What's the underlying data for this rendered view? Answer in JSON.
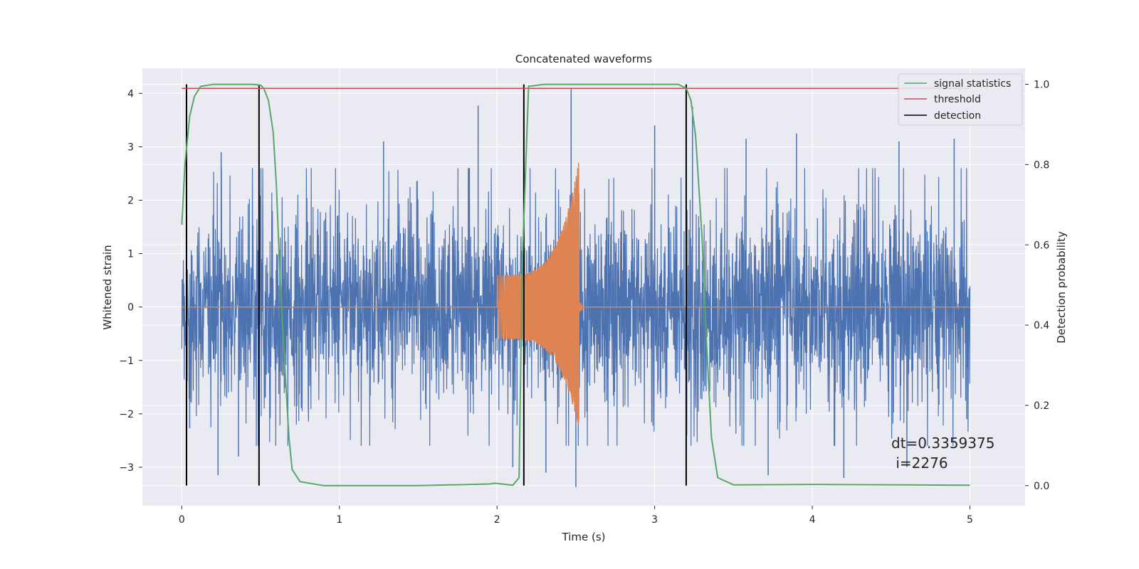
{
  "chart_data": {
    "type": "line",
    "title": "Concatenated waveforms",
    "xlabel": "Time (s)",
    "ylabel": "Whitened strain",
    "ylabel_right": "Detection probability",
    "xlim": [
      -0.25,
      5.35
    ],
    "ylim": [
      -3.72,
      4.47
    ],
    "ylim_right": [
      -0.05,
      1.04
    ],
    "x_ticks": [
      0,
      1,
      2,
      3,
      4,
      5
    ],
    "y_ticks": [
      -3,
      -2,
      -1,
      0,
      1,
      2,
      3,
      4
    ],
    "y_ticks_right": [
      0.0,
      0.2,
      0.4,
      0.6,
      0.8,
      1.0
    ],
    "grid": true,
    "legend_position": "top-right",
    "series": [
      {
        "name": "",
        "axis": "left",
        "description_kind": "noise",
        "x_range": [
          0,
          5
        ],
        "amplitude_typical": 1.0,
        "spikes": [
          {
            "x": 0.03,
            "y": 3.45
          },
          {
            "x": 0.05,
            "y": -2.27
          },
          {
            "x": 0.25,
            "y": 2.9
          },
          {
            "x": 0.23,
            "y": -3.15
          },
          {
            "x": 0.36,
            "y": -2.8
          },
          {
            "x": 1.28,
            "y": 3.1
          },
          {
            "x": 1.88,
            "y": 3.77
          },
          {
            "x": 2.1,
            "y": -3.0
          },
          {
            "x": 2.31,
            "y": -3.1
          },
          {
            "x": 2.47,
            "y": 4.1
          },
          {
            "x": 2.5,
            "y": -3.37
          },
          {
            "x": 3.0,
            "y": 3.4
          },
          {
            "x": 3.24,
            "y": 3.75
          },
          {
            "x": 3.58,
            "y": 3.15
          },
          {
            "x": 3.72,
            "y": -3.15
          },
          {
            "x": 3.9,
            "y": 3.25
          },
          {
            "x": 4.2,
            "y": -3.2
          },
          {
            "x": 4.55,
            "y": 3.1
          },
          {
            "x": 4.6,
            "y": -3.0
          },
          {
            "x": 4.9,
            "y": 3.15
          },
          {
            "x": 4.98,
            "y": -2.1
          }
        ]
      },
      {
        "name": "",
        "axis": "left",
        "description_kind": "chirp",
        "start": 2.0,
        "peak": 2.52,
        "end": 2.55,
        "amplitude_start": 0.6,
        "amplitude_peak": 2.75,
        "amplitude_peak_negative": -2.3
      },
      {
        "name": "signal statistics",
        "axis": "right",
        "x": [
          0.0,
          0.02,
          0.05,
          0.08,
          0.12,
          0.2,
          0.45,
          0.5,
          0.52,
          0.55,
          0.58,
          0.6,
          0.62,
          0.65,
          0.68,
          0.7,
          0.75,
          0.9,
          1.5,
          1.95,
          1.99,
          2.03,
          2.1,
          2.14,
          2.16,
          2.2,
          2.3,
          3.0,
          3.15,
          3.2,
          3.23,
          3.26,
          3.3,
          3.33,
          3.36,
          3.4,
          3.5,
          4.0,
          5.0
        ],
        "y": [
          0.65,
          0.8,
          0.92,
          0.97,
          0.995,
          1.0,
          1.0,
          0.998,
          0.99,
          0.96,
          0.88,
          0.75,
          0.55,
          0.32,
          0.12,
          0.04,
          0.01,
          0.0,
          0.0,
          0.004,
          0.006,
          0.004,
          0.001,
          0.02,
          0.55,
          0.995,
          1.0,
          1.0,
          1.0,
          0.99,
          0.96,
          0.87,
          0.62,
          0.35,
          0.12,
          0.02,
          0.002,
          0.003,
          0.001
        ]
      },
      {
        "name": "threshold",
        "axis": "right",
        "x": [
          0,
          5
        ],
        "y": [
          0.99,
          0.99
        ]
      },
      {
        "name": "detection",
        "axis": "right",
        "x": [
          0.03,
          0.49,
          2.17,
          3.2
        ],
        "ymin": 0.0,
        "ymax": 1.0
      }
    ],
    "annotation": {
      "line1": "dt=0.3359375",
      "line2": " i=2276",
      "x": 4.5,
      "y": -2.55
    },
    "colors": {
      "noise": "#4c72b0",
      "chirp": "#dd8452",
      "signal statistics": "#55a868",
      "threshold": "#c44e52",
      "detection": "#000000",
      "background": "#eaeaf2",
      "grid": "#ffffff"
    }
  }
}
